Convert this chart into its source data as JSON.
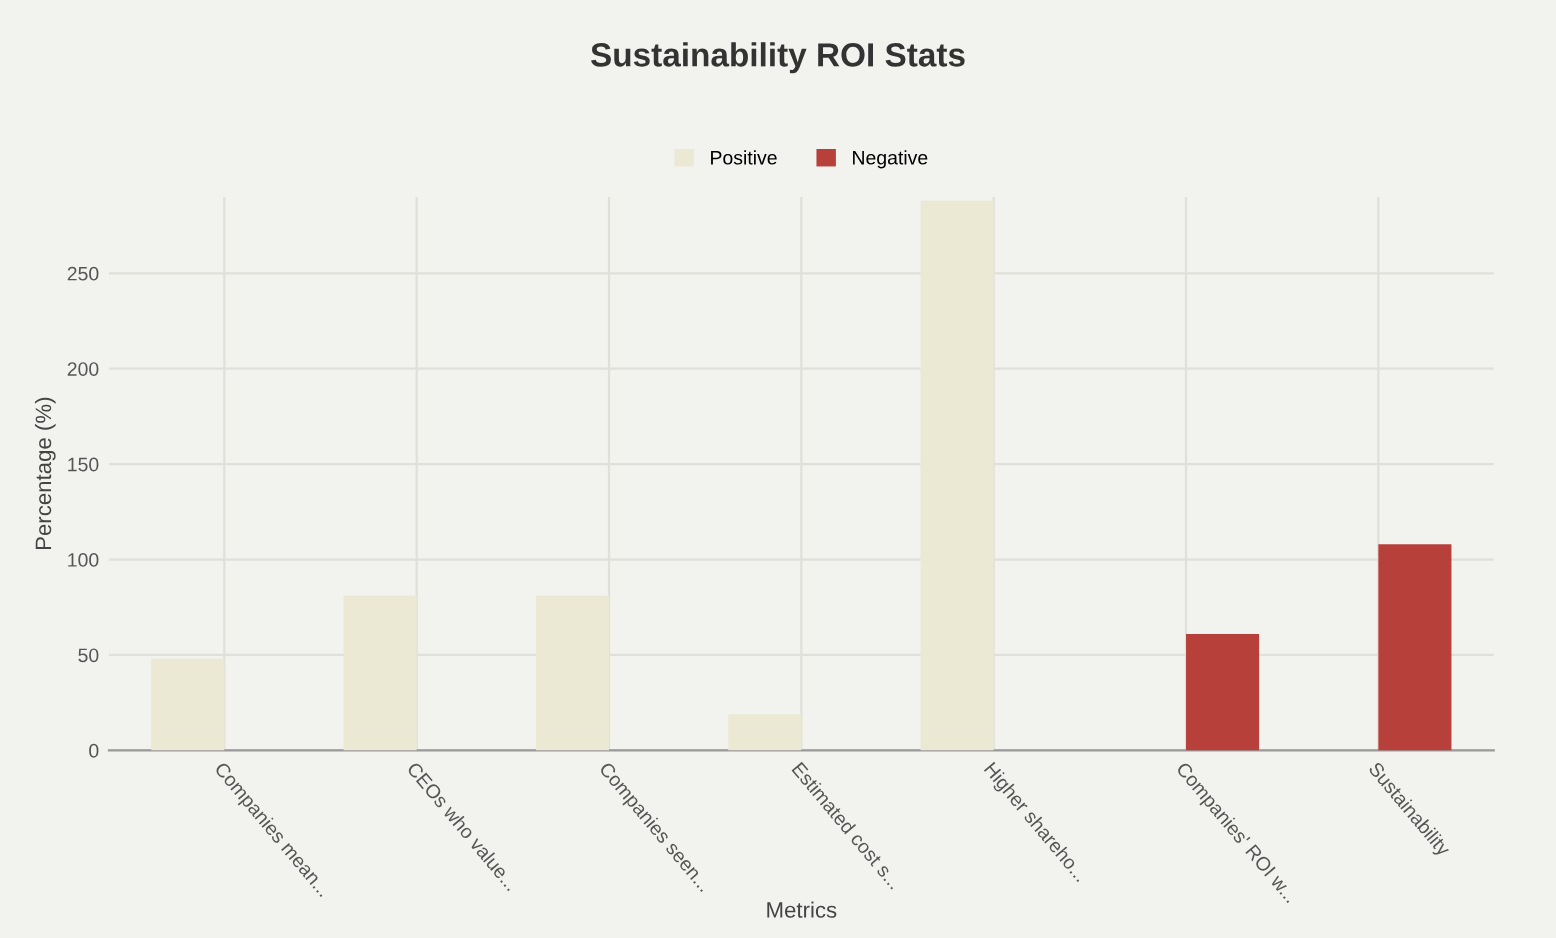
{
  "chart_data": {
    "type": "bar",
    "title": "Sustainability ROI Stats",
    "xlabel": "Metrics",
    "ylabel": "Percentage (%)",
    "categories": [
      "Companies mean...",
      "CEOs who value...",
      "Companies seen...",
      "Estimated cost s...",
      "Higher shareho...",
      "Companies' ROI w...",
      "Sustainability"
    ],
    "series": [
      {
        "name": "Positive",
        "color": "#ebe8d3",
        "values": [
          48,
          81,
          81,
          19,
          288,
          null,
          null
        ]
      },
      {
        "name": "Negative",
        "color": "#b8403a",
        "values": [
          null,
          null,
          null,
          null,
          null,
          61,
          108
        ]
      }
    ],
    "ylim": [
      0,
      290
    ],
    "yticks": [
      0,
      50,
      100,
      150,
      200,
      250
    ],
    "grid": true,
    "legend": "top"
  }
}
